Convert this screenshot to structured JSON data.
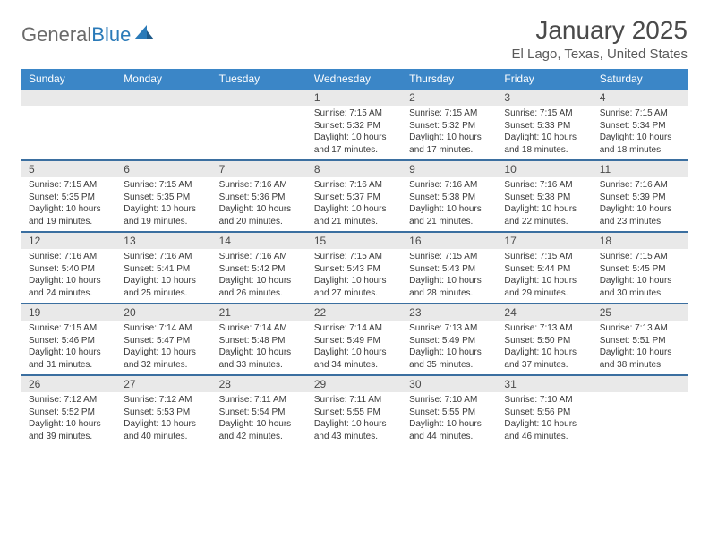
{
  "logo": {
    "text1": "General",
    "text2": "Blue"
  },
  "title": "January 2025",
  "location": "El Lago, Texas, United States",
  "colors": {
    "header_bg": "#3b86c7",
    "header_text": "#ffffff",
    "row_divider": "#3b6fa0",
    "daynum_bg": "#e9e9e9",
    "text": "#3a3a3a",
    "title_text": "#4a4a4a",
    "logo_gray": "#6a6a6a",
    "logo_blue": "#2a7ab8"
  },
  "days_of_week": [
    "Sunday",
    "Monday",
    "Tuesday",
    "Wednesday",
    "Thursday",
    "Friday",
    "Saturday"
  ],
  "weeks": [
    [
      null,
      null,
      null,
      {
        "n": "1",
        "sr": "7:15 AM",
        "ss": "5:32 PM",
        "dl": "10 hours and 17 minutes."
      },
      {
        "n": "2",
        "sr": "7:15 AM",
        "ss": "5:32 PM",
        "dl": "10 hours and 17 minutes."
      },
      {
        "n": "3",
        "sr": "7:15 AM",
        "ss": "5:33 PM",
        "dl": "10 hours and 18 minutes."
      },
      {
        "n": "4",
        "sr": "7:15 AM",
        "ss": "5:34 PM",
        "dl": "10 hours and 18 minutes."
      }
    ],
    [
      {
        "n": "5",
        "sr": "7:15 AM",
        "ss": "5:35 PM",
        "dl": "10 hours and 19 minutes."
      },
      {
        "n": "6",
        "sr": "7:15 AM",
        "ss": "5:35 PM",
        "dl": "10 hours and 19 minutes."
      },
      {
        "n": "7",
        "sr": "7:16 AM",
        "ss": "5:36 PM",
        "dl": "10 hours and 20 minutes."
      },
      {
        "n": "8",
        "sr": "7:16 AM",
        "ss": "5:37 PM",
        "dl": "10 hours and 21 minutes."
      },
      {
        "n": "9",
        "sr": "7:16 AM",
        "ss": "5:38 PM",
        "dl": "10 hours and 21 minutes."
      },
      {
        "n": "10",
        "sr": "7:16 AM",
        "ss": "5:38 PM",
        "dl": "10 hours and 22 minutes."
      },
      {
        "n": "11",
        "sr": "7:16 AM",
        "ss": "5:39 PM",
        "dl": "10 hours and 23 minutes."
      }
    ],
    [
      {
        "n": "12",
        "sr": "7:16 AM",
        "ss": "5:40 PM",
        "dl": "10 hours and 24 minutes."
      },
      {
        "n": "13",
        "sr": "7:16 AM",
        "ss": "5:41 PM",
        "dl": "10 hours and 25 minutes."
      },
      {
        "n": "14",
        "sr": "7:16 AM",
        "ss": "5:42 PM",
        "dl": "10 hours and 26 minutes."
      },
      {
        "n": "15",
        "sr": "7:15 AM",
        "ss": "5:43 PM",
        "dl": "10 hours and 27 minutes."
      },
      {
        "n": "16",
        "sr": "7:15 AM",
        "ss": "5:43 PM",
        "dl": "10 hours and 28 minutes."
      },
      {
        "n": "17",
        "sr": "7:15 AM",
        "ss": "5:44 PM",
        "dl": "10 hours and 29 minutes."
      },
      {
        "n": "18",
        "sr": "7:15 AM",
        "ss": "5:45 PM",
        "dl": "10 hours and 30 minutes."
      }
    ],
    [
      {
        "n": "19",
        "sr": "7:15 AM",
        "ss": "5:46 PM",
        "dl": "10 hours and 31 minutes."
      },
      {
        "n": "20",
        "sr": "7:14 AM",
        "ss": "5:47 PM",
        "dl": "10 hours and 32 minutes."
      },
      {
        "n": "21",
        "sr": "7:14 AM",
        "ss": "5:48 PM",
        "dl": "10 hours and 33 minutes."
      },
      {
        "n": "22",
        "sr": "7:14 AM",
        "ss": "5:49 PM",
        "dl": "10 hours and 34 minutes."
      },
      {
        "n": "23",
        "sr": "7:13 AM",
        "ss": "5:49 PM",
        "dl": "10 hours and 35 minutes."
      },
      {
        "n": "24",
        "sr": "7:13 AM",
        "ss": "5:50 PM",
        "dl": "10 hours and 37 minutes."
      },
      {
        "n": "25",
        "sr": "7:13 AM",
        "ss": "5:51 PM",
        "dl": "10 hours and 38 minutes."
      }
    ],
    [
      {
        "n": "26",
        "sr": "7:12 AM",
        "ss": "5:52 PM",
        "dl": "10 hours and 39 minutes."
      },
      {
        "n": "27",
        "sr": "7:12 AM",
        "ss": "5:53 PM",
        "dl": "10 hours and 40 minutes."
      },
      {
        "n": "28",
        "sr": "7:11 AM",
        "ss": "5:54 PM",
        "dl": "10 hours and 42 minutes."
      },
      {
        "n": "29",
        "sr": "7:11 AM",
        "ss": "5:55 PM",
        "dl": "10 hours and 43 minutes."
      },
      {
        "n": "30",
        "sr": "7:10 AM",
        "ss": "5:55 PM",
        "dl": "10 hours and 44 minutes."
      },
      {
        "n": "31",
        "sr": "7:10 AM",
        "ss": "5:56 PM",
        "dl": "10 hours and 46 minutes."
      },
      null
    ]
  ],
  "labels": {
    "sunrise": "Sunrise:",
    "sunset": "Sunset:",
    "daylight": "Daylight:"
  }
}
